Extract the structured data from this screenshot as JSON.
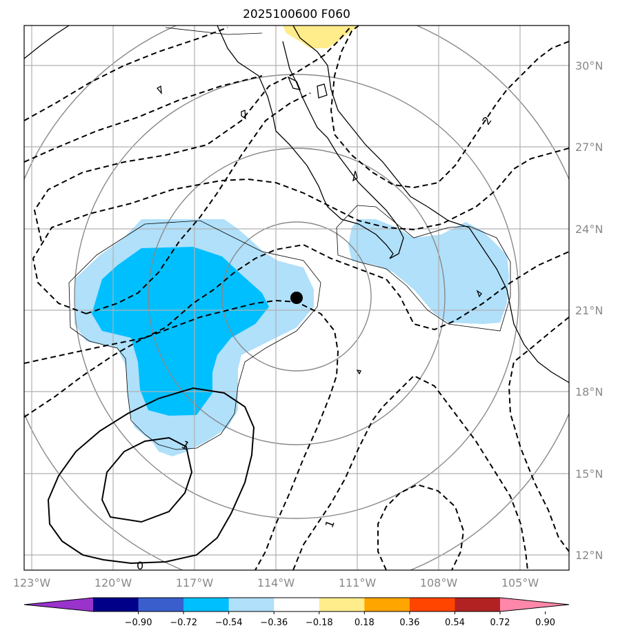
{
  "chart_data": {
    "type": "map",
    "title": "2025100600 F060",
    "lon_ticks": [
      "123°W",
      "120°W",
      "117°W",
      "114°W",
      "111°W",
      "108°W",
      "105°W"
    ],
    "lat_ticks": [
      "30°N",
      "27°N",
      "24°N",
      "21°N",
      "18°N",
      "15°N",
      "12°N"
    ],
    "lon_range": [
      -123.0,
      -103.0
    ],
    "lat_range": [
      11.5,
      31.5
    ],
    "storm_center": {
      "lon": -113.0,
      "lat": 21.5
    },
    "contour_labels": [
      "2",
      "1",
      "1",
      "0"
    ],
    "colorbar": {
      "labels": [
        "−0.90",
        "−0.72",
        "−0.54",
        "−0.36",
        "−0.18",
        "0.18",
        "0.36",
        "0.54",
        "0.72",
        "0.90"
      ],
      "colors": [
        "#9933cc",
        "#000088",
        "#3a5fcd",
        "#00bfff",
        "#b0e0fa",
        "#ffffff",
        "#ffec8b",
        "#ffa500",
        "#ff4500",
        "#b22222",
        "#ff88aa"
      ],
      "extend": "both"
    },
    "grid": true
  }
}
